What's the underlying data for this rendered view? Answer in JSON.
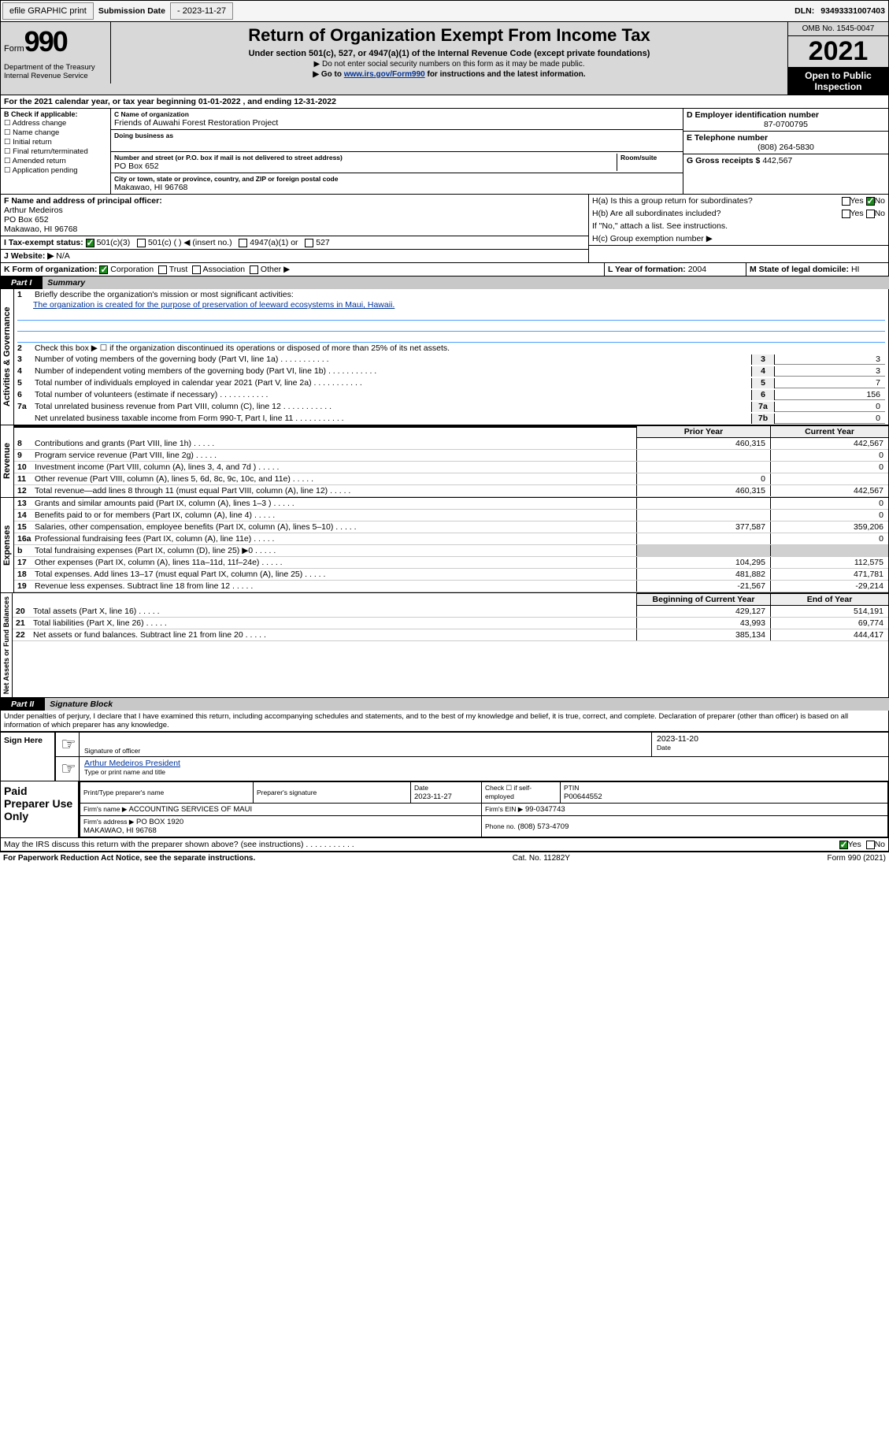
{
  "topbar": {
    "btn1": "efile GRAPHIC print",
    "sub_lbl": "Submission Date",
    "sub_val": "- 2023-11-27",
    "dln_lbl": "DLN:",
    "dln_val": "93493331007403"
  },
  "header": {
    "form_word": "Form",
    "form_num": "990",
    "dept": "Department of the Treasury\nInternal Revenue Service",
    "title": "Return of Organization Exempt From Income Tax",
    "sub1": "Under section 501(c), 527, or 4947(a)(1) of the Internal Revenue Code (except private foundations)",
    "sub2": "▶ Do not enter social security numbers on this form as it may be made public.",
    "sub3_pre": "▶ Go to ",
    "sub3_link": "www.irs.gov/Form990",
    "sub3_post": " for instructions and the latest information.",
    "omb": "OMB No. 1545-0047",
    "year": "2021",
    "open": "Open to Public Inspection"
  },
  "line_a": "For the 2021 calendar year, or tax year beginning 01-01-2022  , and ending 12-31-2022",
  "box_b": {
    "hdr": "B Check if applicable:",
    "items": [
      "Address change",
      "Name change",
      "Initial return",
      "Final return/terminated",
      "Amended return",
      "Application pending"
    ]
  },
  "box_c": {
    "lbl": "C Name of organization",
    "val": "Friends of Auwahi Forest Restoration Project",
    "dba_lbl": "Doing business as",
    "addr_lbl": "Number and street (or P.O. box if mail is not delivered to street address)",
    "addr": "PO Box 652",
    "suite_lbl": "Room/suite",
    "city_lbl": "City or town, state or province, country, and ZIP or foreign postal code",
    "city": "Makawao, HI  96768"
  },
  "box_d": {
    "lbl": "D Employer identification number",
    "val": "87-0700795"
  },
  "box_e": {
    "lbl": "E Telephone number",
    "val": "(808) 264-5830"
  },
  "box_g": {
    "lbl": "G Gross receipts $",
    "val": "442,567"
  },
  "box_f": {
    "lbl": "F Name and address of principal officer:",
    "name": "Arthur Medeiros",
    "addr": "PO Box 652\nMakawao, HI  96768"
  },
  "box_h": {
    "a": "H(a)  Is this a group return for subordinates?",
    "b": "H(b)  Are all subordinates included?",
    "note": "If \"No,\" attach a list. See instructions.",
    "c": "H(c)  Group exemption number ▶"
  },
  "box_i": {
    "lbl": "I  Tax-exempt status:",
    "opts": [
      "501(c)(3)",
      "501(c) (  ) ◀ (insert no.)",
      "4947(a)(1) or",
      "527"
    ]
  },
  "box_j": {
    "lbl": "J  Website: ▶",
    "val": "N/A"
  },
  "box_k": {
    "lbl": "K Form of organization:",
    "opts": [
      "Corporation",
      "Trust",
      "Association",
      "Other ▶"
    ]
  },
  "box_l": {
    "lbl": "L Year of formation:",
    "val": "2004"
  },
  "box_m": {
    "lbl": "M State of legal domicile:",
    "val": "HI"
  },
  "part1": {
    "tab": "Part I",
    "name": "Summary"
  },
  "summary": {
    "l1": "Briefly describe the organization's mission or most significant activities:",
    "mission": "The organization is created for the purpose of preservation of leeward ecosystems in Maui, Hawaii.",
    "l2": "Check this box ▶ ☐ if the organization discontinued its operations or disposed of more than 25% of its net assets.",
    "rows": [
      {
        "n": "3",
        "t": "Number of voting members of the governing body (Part VI, line 1a)",
        "b": "3",
        "v": "3"
      },
      {
        "n": "4",
        "t": "Number of independent voting members of the governing body (Part VI, line 1b)",
        "b": "4",
        "v": "3"
      },
      {
        "n": "5",
        "t": "Total number of individuals employed in calendar year 2021 (Part V, line 2a)",
        "b": "5",
        "v": "7"
      },
      {
        "n": "6",
        "t": "Total number of volunteers (estimate if necessary)",
        "b": "6",
        "v": "156"
      },
      {
        "n": "7a",
        "t": "Total unrelated business revenue from Part VIII, column (C), line 12",
        "b": "7a",
        "v": "0"
      },
      {
        "n": "",
        "t": "Net unrelated business taxable income from Form 990-T, Part I, line 11",
        "b": "7b",
        "v": "0"
      }
    ],
    "hdr2": {
      "py": "Prior Year",
      "cy": "Current Year"
    },
    "rev": [
      {
        "n": "8",
        "t": "Contributions and grants (Part VIII, line 1h)",
        "p": "460,315",
        "c": "442,567"
      },
      {
        "n": "9",
        "t": "Program service revenue (Part VIII, line 2g)",
        "p": "",
        "c": "0"
      },
      {
        "n": "10",
        "t": "Investment income (Part VIII, column (A), lines 3, 4, and 7d )",
        "p": "",
        "c": "0"
      },
      {
        "n": "11",
        "t": "Other revenue (Part VIII, column (A), lines 5, 6d, 8c, 9c, 10c, and 11e)",
        "p": "0",
        "c": ""
      },
      {
        "n": "12",
        "t": "Total revenue—add lines 8 through 11 (must equal Part VIII, column (A), line 12)",
        "p": "460,315",
        "c": "442,567"
      }
    ],
    "exp": [
      {
        "n": "13",
        "t": "Grants and similar amounts paid (Part IX, column (A), lines 1–3 )",
        "p": "",
        "c": "0"
      },
      {
        "n": "14",
        "t": "Benefits paid to or for members (Part IX, column (A), line 4)",
        "p": "",
        "c": "0"
      },
      {
        "n": "15",
        "t": "Salaries, other compensation, employee benefits (Part IX, column (A), lines 5–10)",
        "p": "377,587",
        "c": "359,206"
      },
      {
        "n": "16a",
        "t": "Professional fundraising fees (Part IX, column (A), line 11e)",
        "p": "",
        "c": "0"
      },
      {
        "n": "b",
        "t": "Total fundraising expenses (Part IX, column (D), line 25) ▶0",
        "p": "__gray__",
        "c": "__gray__"
      },
      {
        "n": "17",
        "t": "Other expenses (Part IX, column (A), lines 11a–11d, 11f–24e)",
        "p": "104,295",
        "c": "112,575"
      },
      {
        "n": "18",
        "t": "Total expenses. Add lines 13–17 (must equal Part IX, column (A), line 25)",
        "p": "481,882",
        "c": "471,781"
      },
      {
        "n": "19",
        "t": "Revenue less expenses. Subtract line 18 from line 12",
        "p": "-21,567",
        "c": "-29,214"
      }
    ],
    "hdr3": {
      "b": "Beginning of Current Year",
      "e": "End of Year"
    },
    "net": [
      {
        "n": "20",
        "t": "Total assets (Part X, line 16)",
        "p": "429,127",
        "c": "514,191"
      },
      {
        "n": "21",
        "t": "Total liabilities (Part X, line 26)",
        "p": "43,993",
        "c": "69,774"
      },
      {
        "n": "22",
        "t": "Net assets or fund balances. Subtract line 21 from line 20",
        "p": "385,134",
        "c": "444,417"
      }
    ],
    "vlabels": [
      "Activities & Governance",
      "Revenue",
      "Expenses",
      "Net Assets or Fund Balances"
    ]
  },
  "part2": {
    "tab": "Part II",
    "name": "Signature Block"
  },
  "sig": {
    "decl": "Under penalties of perjury, I declare that I have examined this return, including accompanying schedules and statements, and to the best of my knowledge and belief, it is true, correct, and complete. Declaration of preparer (other than officer) is based on all information of which preparer has any knowledge.",
    "sign_here": "Sign Here",
    "sig_officer": "Signature of officer",
    "date": "Date",
    "sig_date_val": "2023-11-20",
    "name_title": "Arthur Medeiros  President",
    "type_name": "Type or print name and title",
    "paid": "Paid Preparer Use Only",
    "pt_name_lbl": "Print/Type preparer's name",
    "pt_sig_lbl": "Preparer's signature",
    "pt_date_lbl": "Date",
    "pt_date": "2023-11-27",
    "pt_check": "Check ☐ if self-employed",
    "ptin_lbl": "PTIN",
    "ptin": "P00644552",
    "firm_name_lbl": "Firm's name    ▶",
    "firm_name": "ACCOUNTING SERVICES OF MAUI",
    "firm_ein_lbl": "Firm's EIN ▶",
    "firm_ein": "99-0347743",
    "firm_addr_lbl": "Firm's address ▶",
    "firm_addr": "PO BOX 1920\nMAKAWAO, HI  96768",
    "phone_lbl": "Phone no.",
    "phone": "(808) 573-4709",
    "may_irs": "May the IRS discuss this return with the preparer shown above? (see instructions)"
  },
  "footer": {
    "left": "For Paperwork Reduction Act Notice, see the separate instructions.",
    "mid": "Cat. No. 11282Y",
    "right": "Form 990 (2021)"
  },
  "yn": {
    "yes": "Yes",
    "no": "No"
  }
}
